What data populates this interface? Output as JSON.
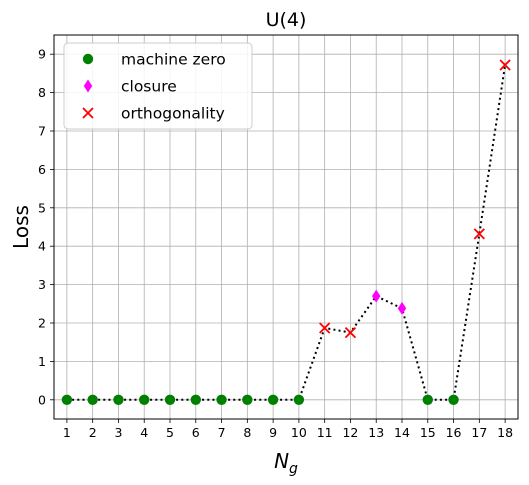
{
  "chart_data": {
    "type": "scatter",
    "title": "U(4)",
    "xlabel": "N",
    "xlabel_sub": "g",
    "ylabel": "Loss",
    "x": [
      1,
      2,
      3,
      4,
      5,
      6,
      7,
      8,
      9,
      10,
      11,
      12,
      13,
      14,
      15,
      16,
      17,
      18
    ],
    "y": [
      0,
      0,
      0,
      0,
      0,
      0,
      0,
      0,
      0,
      0,
      1.87,
      1.75,
      2.7,
      2.38,
      0,
      0,
      4.32,
      8.72
    ],
    "xlim": [
      0.5,
      18.5
    ],
    "ylim": [
      -0.5,
      9.5
    ],
    "xticks": [
      1,
      2,
      3,
      4,
      5,
      6,
      7,
      8,
      9,
      10,
      11,
      12,
      13,
      14,
      15,
      16,
      17,
      18
    ],
    "yticks": [
      0,
      1,
      2,
      3,
      4,
      5,
      6,
      7,
      8,
      9
    ],
    "grid": true,
    "line_style": "dotted",
    "legend_position": "top-left",
    "series": [
      {
        "name": "machine zero",
        "marker": "circle",
        "color": "#008000",
        "x": [
          1,
          2,
          3,
          4,
          5,
          6,
          7,
          8,
          9,
          10,
          15,
          16
        ],
        "y": [
          0,
          0,
          0,
          0,
          0,
          0,
          0,
          0,
          0,
          0,
          0,
          0
        ]
      },
      {
        "name": "closure",
        "marker": "diamond",
        "color": "#ff00ff",
        "x": [
          13,
          14
        ],
        "y": [
          2.7,
          2.38
        ]
      },
      {
        "name": "orthogonality",
        "marker": "x",
        "color": "#ff0000",
        "x": [
          11,
          12,
          17,
          18
        ],
        "y": [
          1.87,
          1.75,
          4.32,
          8.72
        ]
      }
    ]
  }
}
